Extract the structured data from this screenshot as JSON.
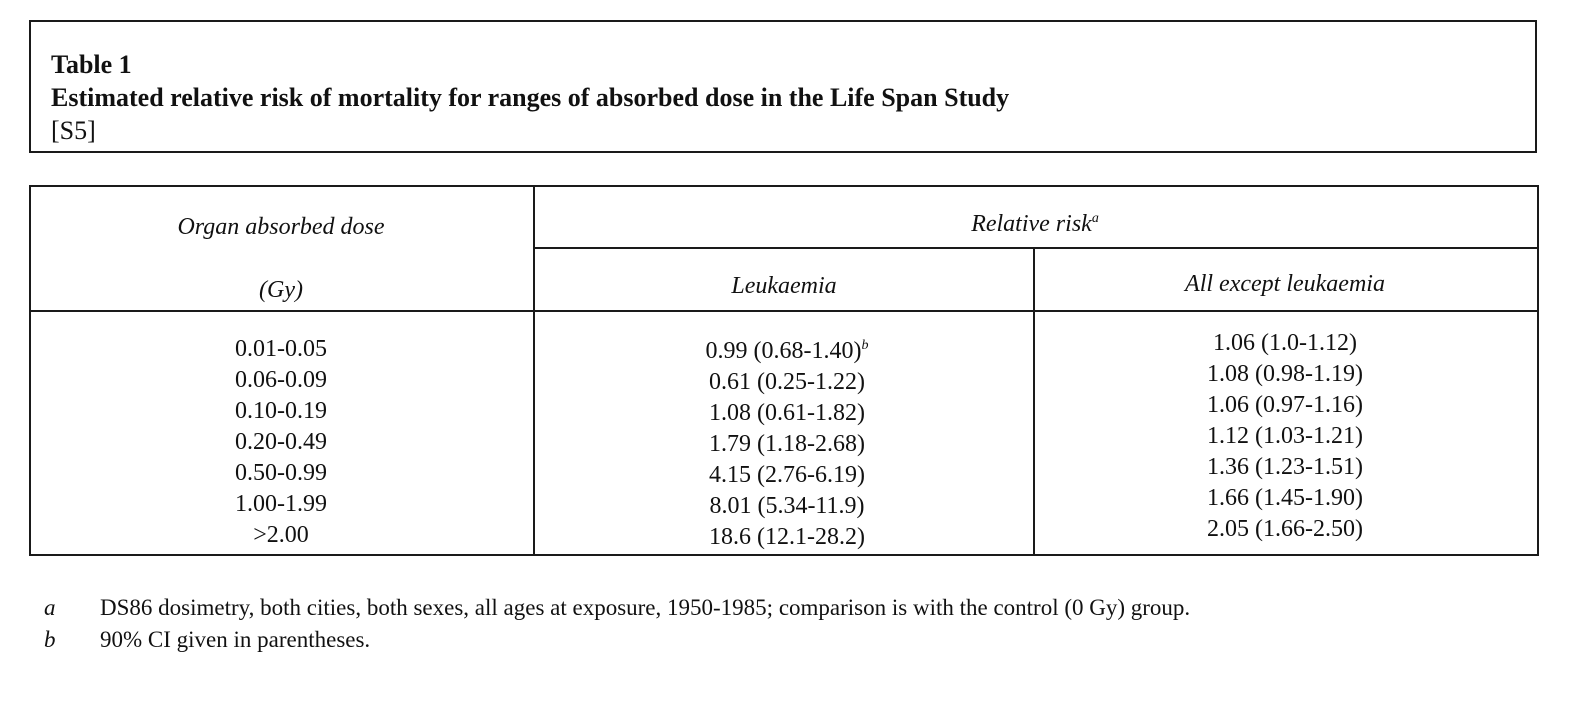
{
  "title_box": {
    "label": "Table 1",
    "caption": "Estimated relative risk of mortality for ranges of absorbed dose in the Life Span Study",
    "reference": "[S5]"
  },
  "table": {
    "headers": {
      "dose_line1": "Organ absorbed dose",
      "dose_line2": "(Gy)",
      "relative_risk": "Relative risk",
      "relative_risk_mark": "a",
      "leukaemia": "Leukaemia",
      "all_except": "All except leukaemia"
    },
    "rows": [
      {
        "dose": "0.01-0.05",
        "leukaemia": "0.99 (0.68-1.40)",
        "leukaemia_mark": "b",
        "all_except": "1.06 (1.0-1.12)"
      },
      {
        "dose": "0.06-0.09",
        "leukaemia": "0.61 (0.25-1.22)",
        "leukaemia_mark": "",
        "all_except": "1.08 (0.98-1.19)"
      },
      {
        "dose": "0.10-0.19",
        "leukaemia": "1.08 (0.61-1.82)",
        "leukaemia_mark": "",
        "all_except": "1.06 (0.97-1.16)"
      },
      {
        "dose": "0.20-0.49",
        "leukaemia": "1.79 (1.18-2.68)",
        "leukaemia_mark": "",
        "all_except": "1.12 (1.03-1.21)"
      },
      {
        "dose": "0.50-0.99",
        "leukaemia": "4.15 (2.76-6.19)",
        "leukaemia_mark": "",
        "all_except": "1.36 (1.23-1.51)"
      },
      {
        "dose": "1.00-1.99",
        "leukaemia": "8.01 (5.34-11.9)",
        "leukaemia_mark": "",
        "all_except": "1.66 (1.45-1.90)"
      },
      {
        "dose": ">2.00",
        "leukaemia": "18.6 (12.1-28.2)",
        "leukaemia_mark": "",
        "all_except": "2.05 (1.66-2.50)"
      }
    ]
  },
  "footnotes": [
    {
      "mark": "a",
      "text": "DS86 dosimetry, both cities, both sexes, all  ages at exposure, 1950-1985; comparison is with the control (0 Gy) group."
    },
    {
      "mark": "b",
      "text": "90% CI given in parentheses."
    }
  ]
}
